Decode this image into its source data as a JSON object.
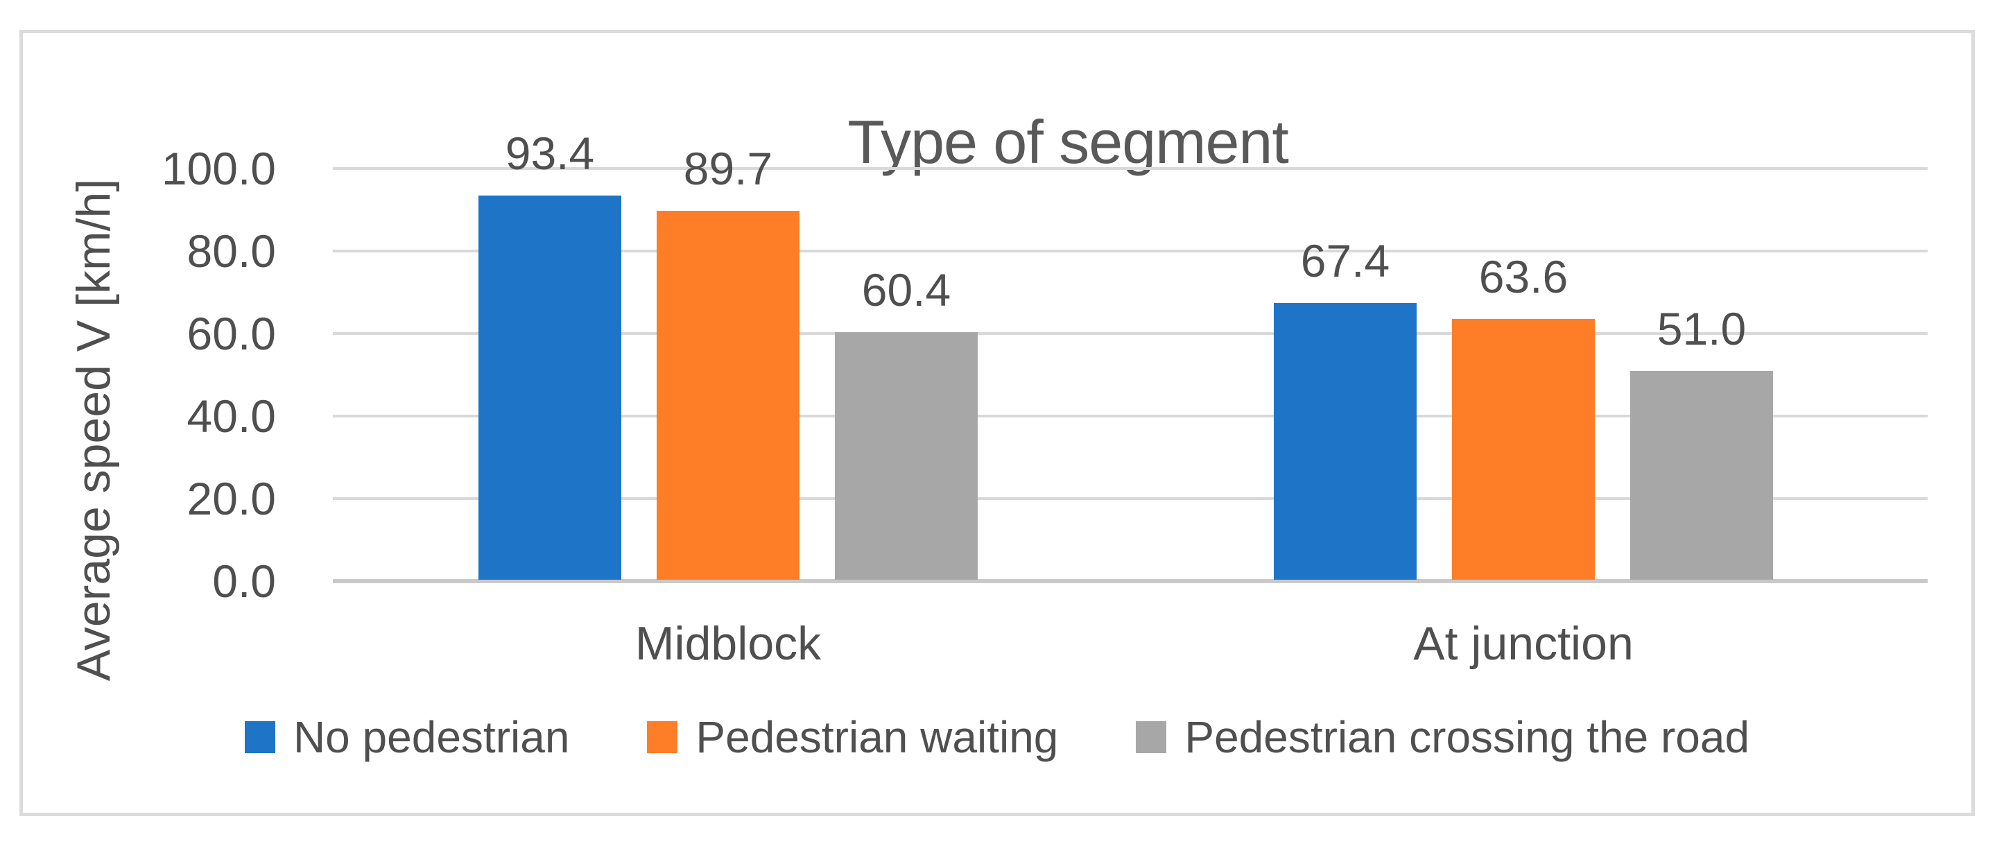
{
  "chart_data": {
    "type": "bar",
    "title": "Type of segment",
    "xlabel": "",
    "ylabel": "Average speed V [km/h]",
    "categories": [
      "Midblock",
      "At junction"
    ],
    "series": [
      {
        "name": "No pedestrian",
        "color": "#1E74C6",
        "values": [
          93.4,
          67.4
        ],
        "labels": [
          "93.4",
          "67.4"
        ]
      },
      {
        "name": "Pedestrian waiting",
        "color": "#FD7E27",
        "values": [
          89.7,
          63.6
        ],
        "labels": [
          "89.7",
          "63.6"
        ]
      },
      {
        "name": "Pedestrian crossing the road",
        "color": "#A7A7A7",
        "values": [
          60.4,
          51.0
        ],
        "labels": [
          "60.4",
          "51.0"
        ]
      }
    ],
    "ylim": [
      0,
      100
    ],
    "ytick_step": 20,
    "ytick_labels": [
      "0.0",
      "20.0",
      "40.0",
      "60.0",
      "80.0",
      "100.0"
    ],
    "grid": true,
    "legend_position": "bottom",
    "colors": {
      "gridline": "#D9D9D9",
      "axis_line": "#C9C9C9",
      "frame_border": "#DBDBDB",
      "text": "#4F4F4F",
      "title_text": "#595959"
    }
  }
}
